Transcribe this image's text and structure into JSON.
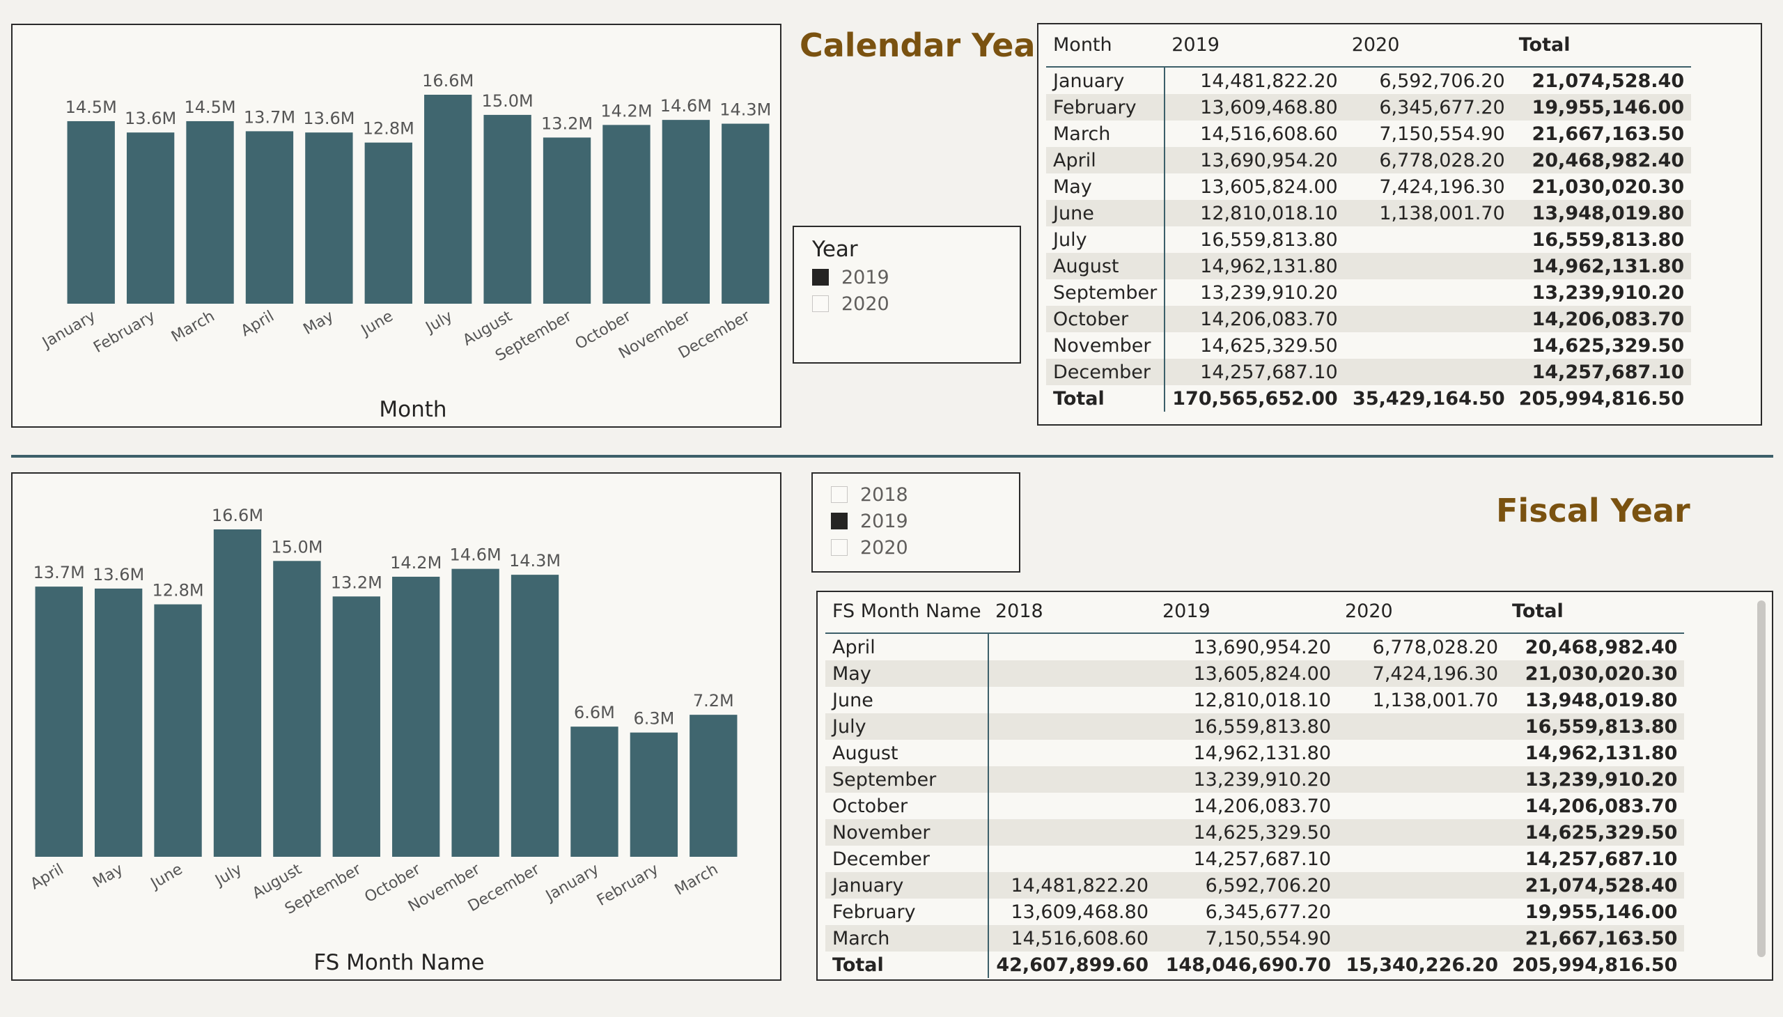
{
  "colors": {
    "bar": "#40666f",
    "title": "#7a5210",
    "divider": "#3c5f69"
  },
  "calendar": {
    "title": "Calendar Year",
    "chart_data": {
      "type": "bar",
      "categories": [
        "January",
        "February",
        "March",
        "April",
        "May",
        "June",
        "July",
        "August",
        "September",
        "October",
        "November",
        "December"
      ],
      "values": [
        14.5,
        13.6,
        14.5,
        13.7,
        13.6,
        12.8,
        16.6,
        15.0,
        13.2,
        14.2,
        14.6,
        14.3
      ],
      "labels": [
        "14.5M",
        "13.6M",
        "14.5M",
        "13.7M",
        "13.6M",
        "12.8M",
        "16.6M",
        "15.0M",
        "13.2M",
        "14.2M",
        "14.6M",
        "14.3M"
      ],
      "xlabel": "Month",
      "ylim": [
        0,
        16.6
      ]
    },
    "slicer": {
      "title": "Year",
      "items": [
        {
          "label": "2019",
          "selected": true
        },
        {
          "label": "2020",
          "selected": false
        }
      ]
    },
    "matrix": {
      "headers": [
        "Month",
        "2019",
        "2020",
        "Total"
      ],
      "rows": [
        [
          "January",
          "14,481,822.20",
          "6,592,706.20",
          "21,074,528.40"
        ],
        [
          "February",
          "13,609,468.80",
          "6,345,677.20",
          "19,955,146.00"
        ],
        [
          "March",
          "14,516,608.60",
          "7,150,554.90",
          "21,667,163.50"
        ],
        [
          "April",
          "13,690,954.20",
          "6,778,028.20",
          "20,468,982.40"
        ],
        [
          "May",
          "13,605,824.00",
          "7,424,196.30",
          "21,030,020.30"
        ],
        [
          "June",
          "12,810,018.10",
          "1,138,001.70",
          "13,948,019.80"
        ],
        [
          "July",
          "16,559,813.80",
          "",
          "16,559,813.80"
        ],
        [
          "August",
          "14,962,131.80",
          "",
          "14,962,131.80"
        ],
        [
          "September",
          "13,239,910.20",
          "",
          "13,239,910.20"
        ],
        [
          "October",
          "14,206,083.70",
          "",
          "14,206,083.70"
        ],
        [
          "November",
          "14,625,329.50",
          "",
          "14,625,329.50"
        ],
        [
          "December",
          "14,257,687.10",
          "",
          "14,257,687.10"
        ]
      ],
      "total": [
        "Total",
        "170,565,652.00",
        "35,429,164.50",
        "205,994,816.50"
      ]
    }
  },
  "fiscal": {
    "title": "Fiscal Year",
    "chart_data": {
      "type": "bar",
      "categories": [
        "April",
        "May",
        "June",
        "July",
        "August",
        "September",
        "October",
        "November",
        "December",
        "January",
        "February",
        "March"
      ],
      "values": [
        13.7,
        13.6,
        12.8,
        16.6,
        15.0,
        13.2,
        14.2,
        14.6,
        14.3,
        6.6,
        6.3,
        7.2
      ],
      "labels": [
        "13.7M",
        "13.6M",
        "12.8M",
        "16.6M",
        "15.0M",
        "13.2M",
        "14.2M",
        "14.6M",
        "14.3M",
        "6.6M",
        "6.3M",
        "7.2M"
      ],
      "xlabel": "FS Month Name",
      "ylim": [
        0,
        16.6
      ]
    },
    "slicer": {
      "items": [
        {
          "label": "2018",
          "selected": false
        },
        {
          "label": "2019",
          "selected": true
        },
        {
          "label": "2020",
          "selected": false
        }
      ]
    },
    "matrix": {
      "headers": [
        "FS Month Name",
        "2018",
        "2019",
        "2020",
        "Total"
      ],
      "rows": [
        [
          "April",
          "",
          "13,690,954.20",
          "6,778,028.20",
          "20,468,982.40"
        ],
        [
          "May",
          "",
          "13,605,824.00",
          "7,424,196.30",
          "21,030,020.30"
        ],
        [
          "June",
          "",
          "12,810,018.10",
          "1,138,001.70",
          "13,948,019.80"
        ],
        [
          "July",
          "",
          "16,559,813.80",
          "",
          "16,559,813.80"
        ],
        [
          "August",
          "",
          "14,962,131.80",
          "",
          "14,962,131.80"
        ],
        [
          "September",
          "",
          "13,239,910.20",
          "",
          "13,239,910.20"
        ],
        [
          "October",
          "",
          "14,206,083.70",
          "",
          "14,206,083.70"
        ],
        [
          "November",
          "",
          "14,625,329.50",
          "",
          "14,625,329.50"
        ],
        [
          "December",
          "",
          "14,257,687.10",
          "",
          "14,257,687.10"
        ],
        [
          "January",
          "14,481,822.20",
          "6,592,706.20",
          "",
          "21,074,528.40"
        ],
        [
          "February",
          "13,609,468.80",
          "6,345,677.20",
          "",
          "19,955,146.00"
        ],
        [
          "March",
          "14,516,608.60",
          "7,150,554.90",
          "",
          "21,667,163.50"
        ]
      ],
      "total": [
        "Total",
        "42,607,899.60",
        "148,046,690.70",
        "15,340,226.20",
        "205,994,816.50"
      ]
    }
  }
}
